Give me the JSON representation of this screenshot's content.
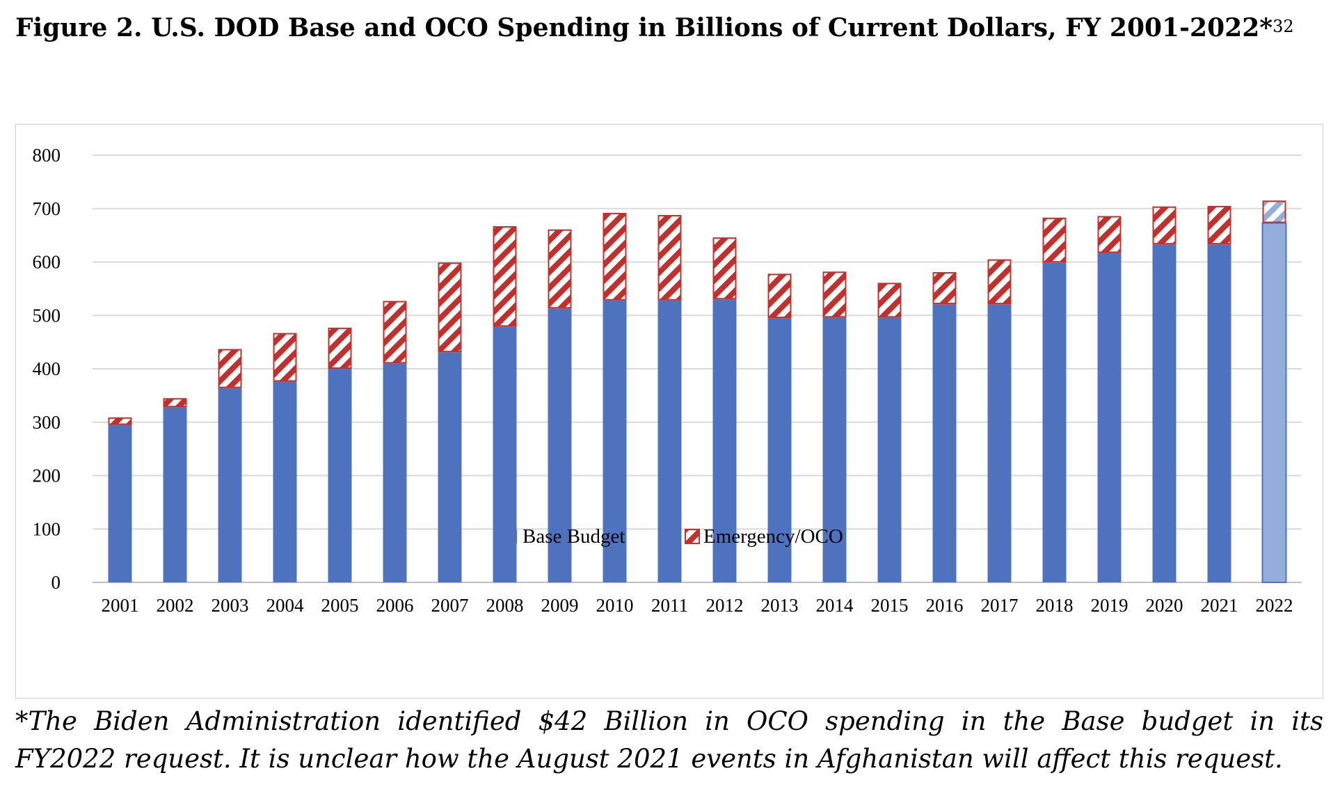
{
  "figure": {
    "title": "Figure 2. U.S. DOD Base and OCO Spending in Billions of Current Dollars, FY 2001-2022*",
    "footnote_ref": "32",
    "note_line1": "*The Biden Administration identified $42 Billion in OCO spending in the Base budget in its",
    "note_line2": "FY2022 request.  It is unclear how the August 2021 events in Afghanistan will affect this request."
  },
  "chart_data": {
    "type": "bar",
    "stacked": true,
    "categories": [
      "2001",
      "2002",
      "2003",
      "2004",
      "2005",
      "2006",
      "2007",
      "2008",
      "2009",
      "2010",
      "2011",
      "2012",
      "2013",
      "2014",
      "2015",
      "2016",
      "2017",
      "2018",
      "2019",
      "2020",
      "2021",
      "2022"
    ],
    "series": [
      {
        "name": "Base Budget",
        "color": "#4f72be",
        "values": [
          295,
          328,
          364,
          376,
          400,
          410,
          431,
          479,
          513,
          528,
          528,
          530,
          495,
          496,
          496,
          521,
          521,
          599,
          617,
          633,
          633,
          673
        ]
      },
      {
        "name": "Emergency/OCO",
        "color": "#c0302c",
        "pattern": "diagonal-hatch",
        "values": [
          14,
          17,
          73,
          91,
          77,
          117,
          168,
          188,
          148,
          164,
          160,
          116,
          83,
          86,
          65,
          60,
          84,
          84,
          69,
          71,
          72,
          42
        ]
      }
    ],
    "highlight": {
      "category": "2022",
      "base_color": "#94aedb",
      "oco_color": "#94aedb"
    },
    "ylim": [
      0,
      800
    ],
    "yticks": [
      0,
      100,
      200,
      300,
      400,
      500,
      600,
      700,
      800
    ],
    "grid": true,
    "legend": "bottom-center",
    "xlabel": "",
    "ylabel": ""
  }
}
